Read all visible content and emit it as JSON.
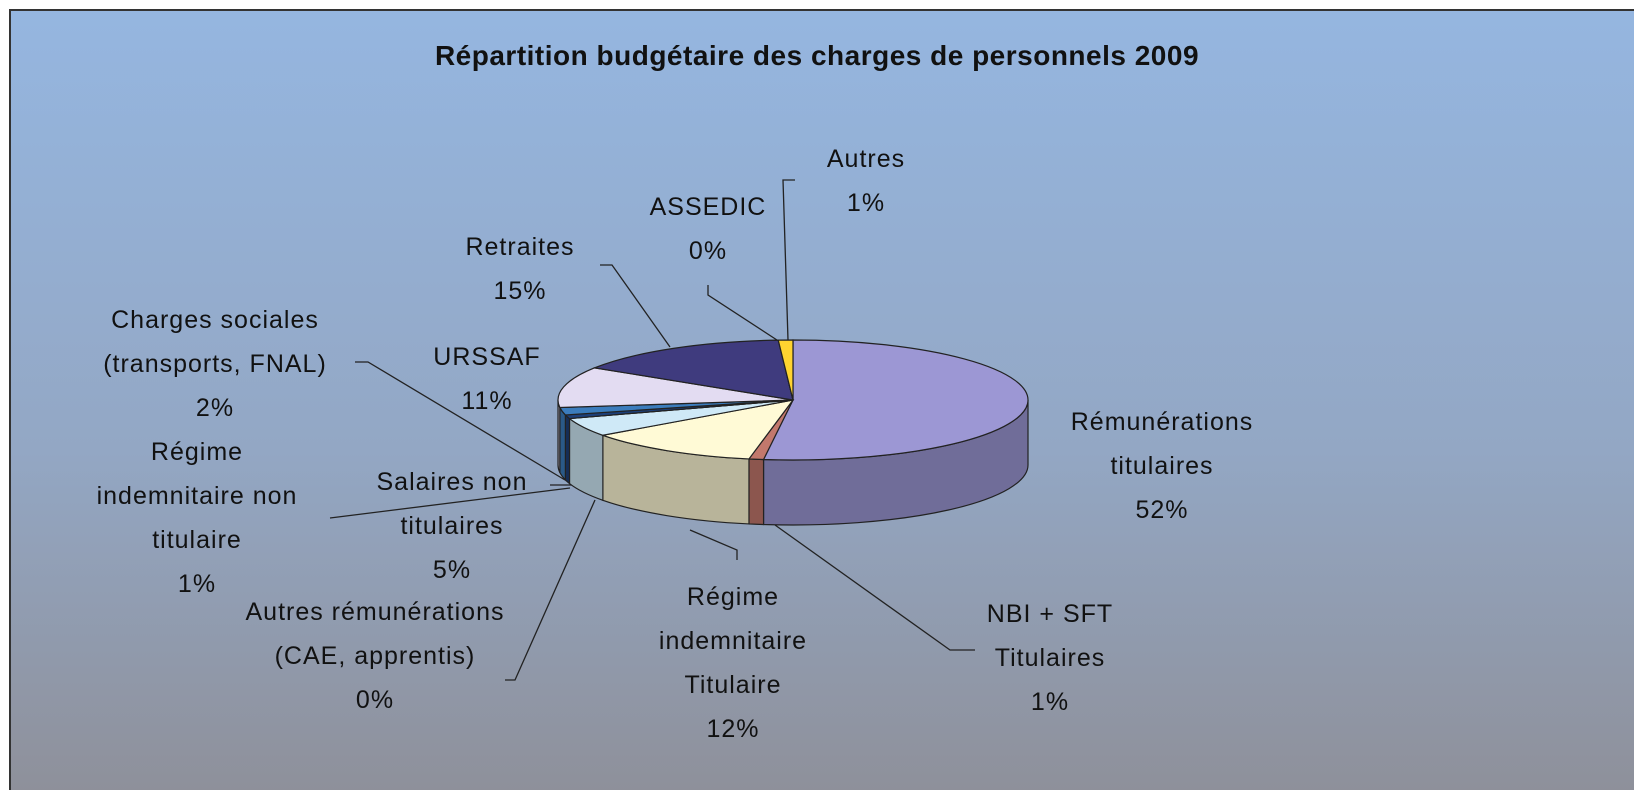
{
  "chart_data": {
    "type": "pie",
    "title": "Répartition budgétaire des charges de personnels 2009",
    "categories": [
      "Rémunérations titulaires",
      "NBI + SFT Titulaires",
      "Régime indemnitaire Titulaire",
      "Salaires non titulaires",
      "Autres rémunérations (CAE, apprentis)",
      "Régime indemnitaire non titulaire",
      "Charges sociales (transports, FNAL)",
      "URSSAF",
      "Retraites",
      "ASSEDIC",
      "Autres"
    ],
    "values": [
      52,
      1,
      12,
      5,
      0,
      1,
      2,
      11,
      15,
      0,
      1
    ],
    "value_labels": [
      "52%",
      "1%",
      "12%",
      "5%",
      "0%",
      "1%",
      "2%",
      "11%",
      "15%",
      "0%",
      "1%"
    ],
    "colors": [
      "#9c97d4",
      "#c2786c",
      "#fffad6",
      "#cfe9f7",
      "#6a8fc0",
      "#1d3f78",
      "#3b7cbc",
      "#e3dcf2",
      "#3f3b7e",
      "#c96464",
      "#ffd430"
    ]
  }
}
